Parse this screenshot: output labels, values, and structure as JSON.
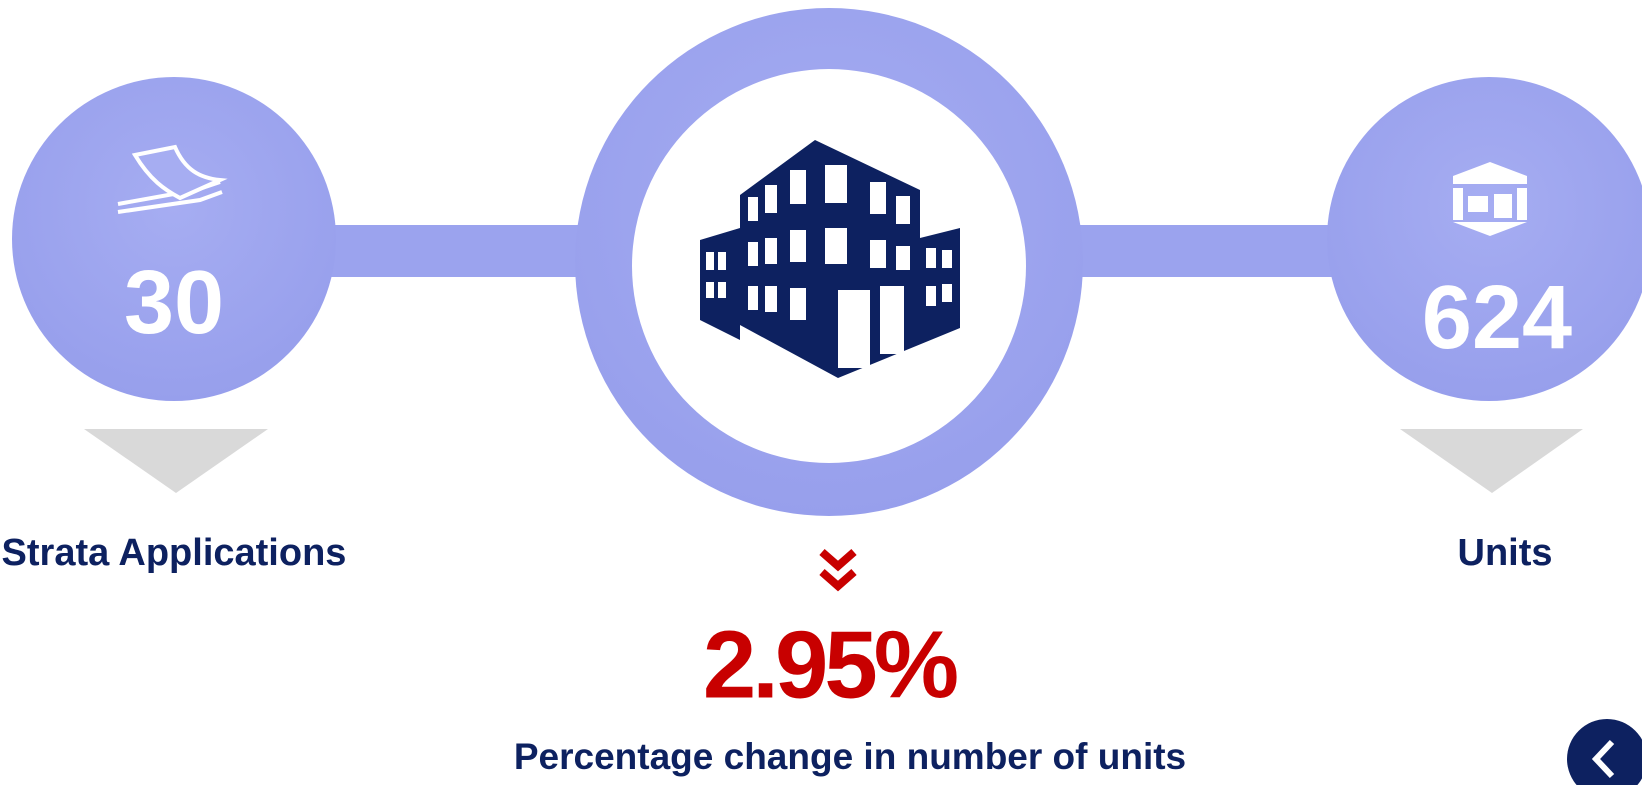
{
  "stats": [
    {
      "value": "30",
      "label": "Strata Applications"
    },
    {
      "value": "624",
      "label": "Units"
    }
  ],
  "change": {
    "value": "2.95%",
    "label": "Percentage change in number of units"
  }
}
